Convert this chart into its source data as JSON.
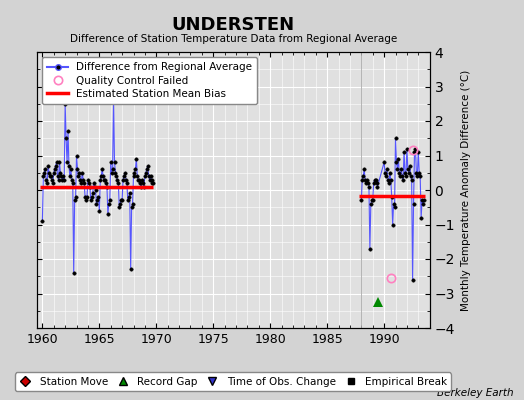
{
  "title": "UNDERSTEN",
  "subtitle": "Difference of Station Temperature Data from Regional Average",
  "ylabel": "Monthly Temperature Anomaly Difference (°C)",
  "xlabel_ticks": [
    1960,
    1965,
    1970,
    1975,
    1980,
    1985,
    1990
  ],
  "ylim": [
    -4,
    4
  ],
  "xlim": [
    1959.5,
    1994.0
  ],
  "background_color": "#d3d3d3",
  "plot_bg_color": "#e0e0e0",
  "grid_color": "#ffffff",
  "series1_color": "#5555ff",
  "bias_color": "#ff0000",
  "qc_color": "#ff80c0",
  "record_gap_color": "#008800",
  "record_gap_x": 1989.42,
  "record_gap_y": -3.25,
  "bias1_xstart": 1959.8,
  "bias1_xend": 1969.75,
  "bias1_y": 0.08,
  "bias2_xstart": 1987.8,
  "bias2_xend": 1993.6,
  "bias2_y": -0.18,
  "station_data1_x": [
    1960.0,
    1960.083,
    1960.167,
    1960.25,
    1960.333,
    1960.417,
    1960.5,
    1960.583,
    1960.667,
    1960.75,
    1960.833,
    1960.917,
    1961.0,
    1961.083,
    1961.167,
    1961.25,
    1961.333,
    1961.417,
    1961.5,
    1961.583,
    1961.667,
    1961.75,
    1961.833,
    1961.917,
    1962.0,
    1962.083,
    1962.167,
    1962.25,
    1962.333,
    1962.417,
    1962.5,
    1962.583,
    1962.667,
    1962.75,
    1962.833,
    1962.917,
    1963.0,
    1963.083,
    1963.167,
    1963.25,
    1963.333,
    1963.417,
    1963.5,
    1963.583,
    1963.667,
    1963.75,
    1963.833,
    1963.917,
    1964.0,
    1964.083,
    1964.167,
    1964.25,
    1964.333,
    1964.417,
    1964.5,
    1964.583,
    1964.667,
    1964.75,
    1964.833,
    1964.917,
    1965.0,
    1965.083,
    1965.167,
    1965.25,
    1965.333,
    1965.417,
    1965.5,
    1965.583,
    1965.667,
    1965.75,
    1965.833,
    1965.917,
    1966.0,
    1966.083,
    1966.167,
    1966.25,
    1966.333,
    1966.417,
    1966.5,
    1966.583,
    1966.667,
    1966.75,
    1966.833,
    1966.917,
    1967.0,
    1967.083,
    1967.167,
    1967.25,
    1967.333,
    1967.417,
    1967.5,
    1967.583,
    1967.667,
    1967.75,
    1967.833,
    1967.917,
    1968.0,
    1968.083,
    1968.167,
    1968.25,
    1968.333,
    1968.417,
    1968.5,
    1968.583,
    1968.667,
    1968.75,
    1968.833,
    1968.917,
    1969.0,
    1969.083,
    1969.167,
    1969.25,
    1969.333,
    1969.417,
    1969.5,
    1969.583,
    1969.667,
    1969.75
  ],
  "station_data1_y": [
    -0.9,
    0.4,
    0.5,
    0.6,
    0.3,
    0.2,
    0.7,
    0.5,
    0.4,
    0.4,
    0.3,
    0.2,
    0.5,
    0.6,
    0.7,
    0.8,
    0.4,
    0.3,
    0.8,
    0.5,
    0.4,
    0.3,
    0.4,
    0.3,
    2.5,
    1.5,
    0.8,
    1.7,
    0.7,
    0.4,
    0.6,
    0.3,
    0.2,
    -2.4,
    -0.3,
    -0.2,
    1.0,
    0.6,
    0.4,
    0.5,
    0.3,
    0.2,
    0.5,
    0.3,
    0.2,
    -0.2,
    -0.3,
    -0.2,
    0.3,
    0.2,
    0.1,
    -0.3,
    -0.2,
    -0.1,
    0.2,
    0.1,
    0.0,
    -0.4,
    -0.3,
    -0.2,
    -0.6,
    0.3,
    0.4,
    0.6,
    0.4,
    0.3,
    0.3,
    0.2,
    0.1,
    -0.7,
    -0.4,
    -0.3,
    0.8,
    0.5,
    0.6,
    2.6,
    0.8,
    0.5,
    0.4,
    0.3,
    0.2,
    -0.5,
    -0.4,
    -0.3,
    -0.3,
    0.3,
    0.4,
    0.5,
    0.3,
    0.2,
    -0.3,
    -0.2,
    -0.1,
    -2.3,
    -0.5,
    -0.4,
    0.4,
    0.5,
    0.6,
    0.9,
    0.4,
    0.3,
    0.3,
    0.2,
    0.1,
    0.3,
    0.2,
    0.1,
    0.4,
    0.5,
    0.6,
    0.7,
    0.4,
    0.3,
    0.4,
    0.3,
    0.2,
    0.2
  ],
  "station_data2_x": [
    1988.0,
    1988.083,
    1988.167,
    1988.25,
    1988.333,
    1988.417,
    1988.5,
    1988.583,
    1988.667,
    1988.75,
    1988.833,
    1988.917,
    1989.0,
    1989.083,
    1989.167,
    1989.25,
    1989.333,
    1989.417,
    1990.0,
    1990.083,
    1990.167,
    1990.25,
    1990.333,
    1990.417,
    1990.5,
    1990.583,
    1990.667,
    1990.75,
    1990.833,
    1990.917,
    1991.0,
    1991.083,
    1991.167,
    1991.25,
    1991.333,
    1991.417,
    1991.5,
    1991.583,
    1991.667,
    1991.75,
    1991.833,
    1991.917,
    1992.0,
    1992.083,
    1992.167,
    1992.25,
    1992.333,
    1992.417,
    1992.5,
    1992.583,
    1992.667,
    1992.75,
    1992.833,
    1992.917,
    1993.0,
    1993.083,
    1993.167,
    1993.25,
    1993.333,
    1993.417,
    1993.5
  ],
  "station_data2_y": [
    -0.3,
    0.3,
    0.4,
    0.6,
    0.3,
    0.2,
    0.3,
    0.2,
    0.1,
    -1.7,
    -0.4,
    -0.3,
    -0.3,
    0.2,
    0.3,
    0.3,
    0.2,
    0.1,
    0.8,
    0.5,
    0.4,
    0.6,
    0.3,
    0.2,
    0.5,
    0.3,
    -0.2,
    -1.0,
    -0.4,
    -0.5,
    1.5,
    0.8,
    0.6,
    0.9,
    0.5,
    0.4,
    0.6,
    0.4,
    0.3,
    1.1,
    0.5,
    0.4,
    1.2,
    0.6,
    0.5,
    0.7,
    0.4,
    0.3,
    -2.6,
    -0.4,
    1.1,
    1.2,
    0.5,
    0.4,
    1.1,
    0.5,
    0.4,
    -0.8,
    -0.3,
    -0.4,
    -0.3
  ],
  "qc_points_x": [
    1990.583,
    1992.5
  ],
  "qc_points_y": [
    -2.55,
    1.15
  ],
  "berkeleyearth_text": "Berkeley Earth",
  "vertical_line_x": 1988.0
}
